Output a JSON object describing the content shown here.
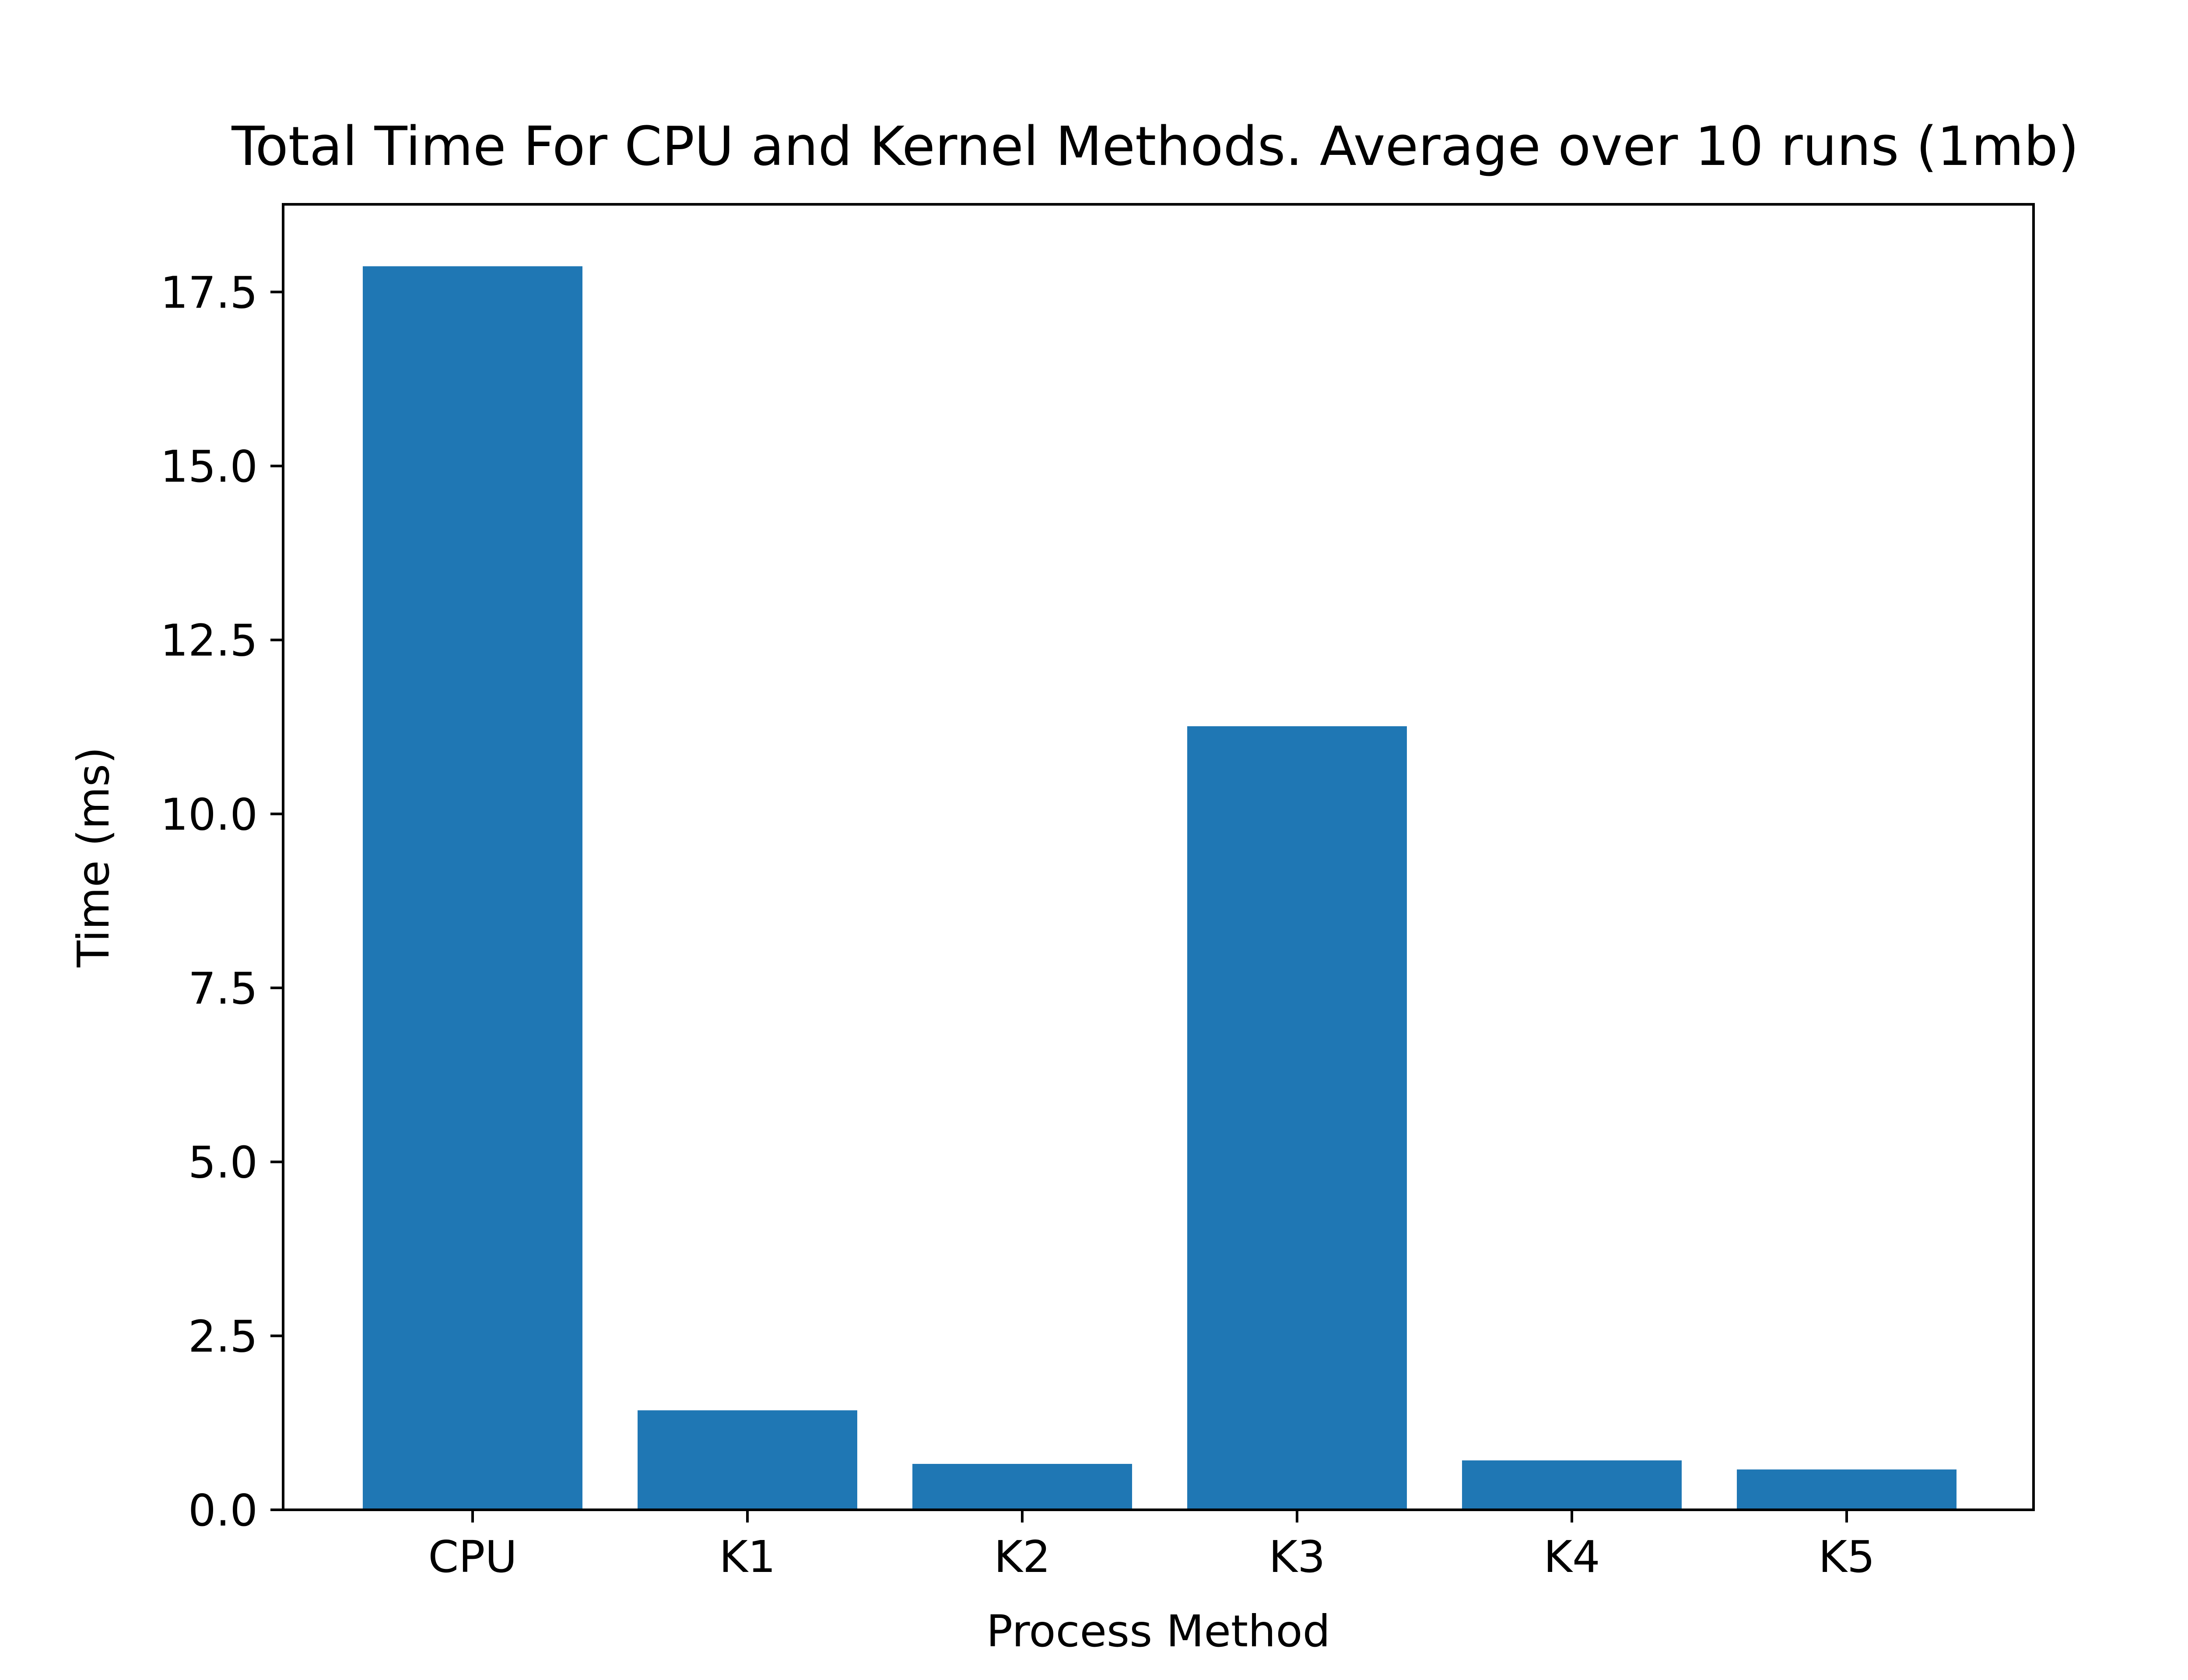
{
  "chart_data": {
    "type": "bar",
    "title": "Total Time For CPU and Kernel Methods. Average over 10 runs (1mb)",
    "xlabel": "Process Method",
    "ylabel": "Time (ms)",
    "categories": [
      "CPU",
      "K1",
      "K2",
      "K3",
      "K4",
      "K5"
    ],
    "values": [
      17.87,
      1.43,
      0.66,
      11.26,
      0.71,
      0.58
    ],
    "ylim": [
      0,
      18.76
    ],
    "yticks": [
      0,
      2.5,
      5,
      7.5,
      10,
      12.5,
      15,
      17.5
    ],
    "ytick_labels": [
      "0.0",
      "2.5",
      "5.0",
      "7.5",
      "10.0",
      "12.5",
      "15.0",
      "17.5"
    ],
    "grid": false,
    "legend": "none",
    "bar_color": "#1f77b4"
  }
}
